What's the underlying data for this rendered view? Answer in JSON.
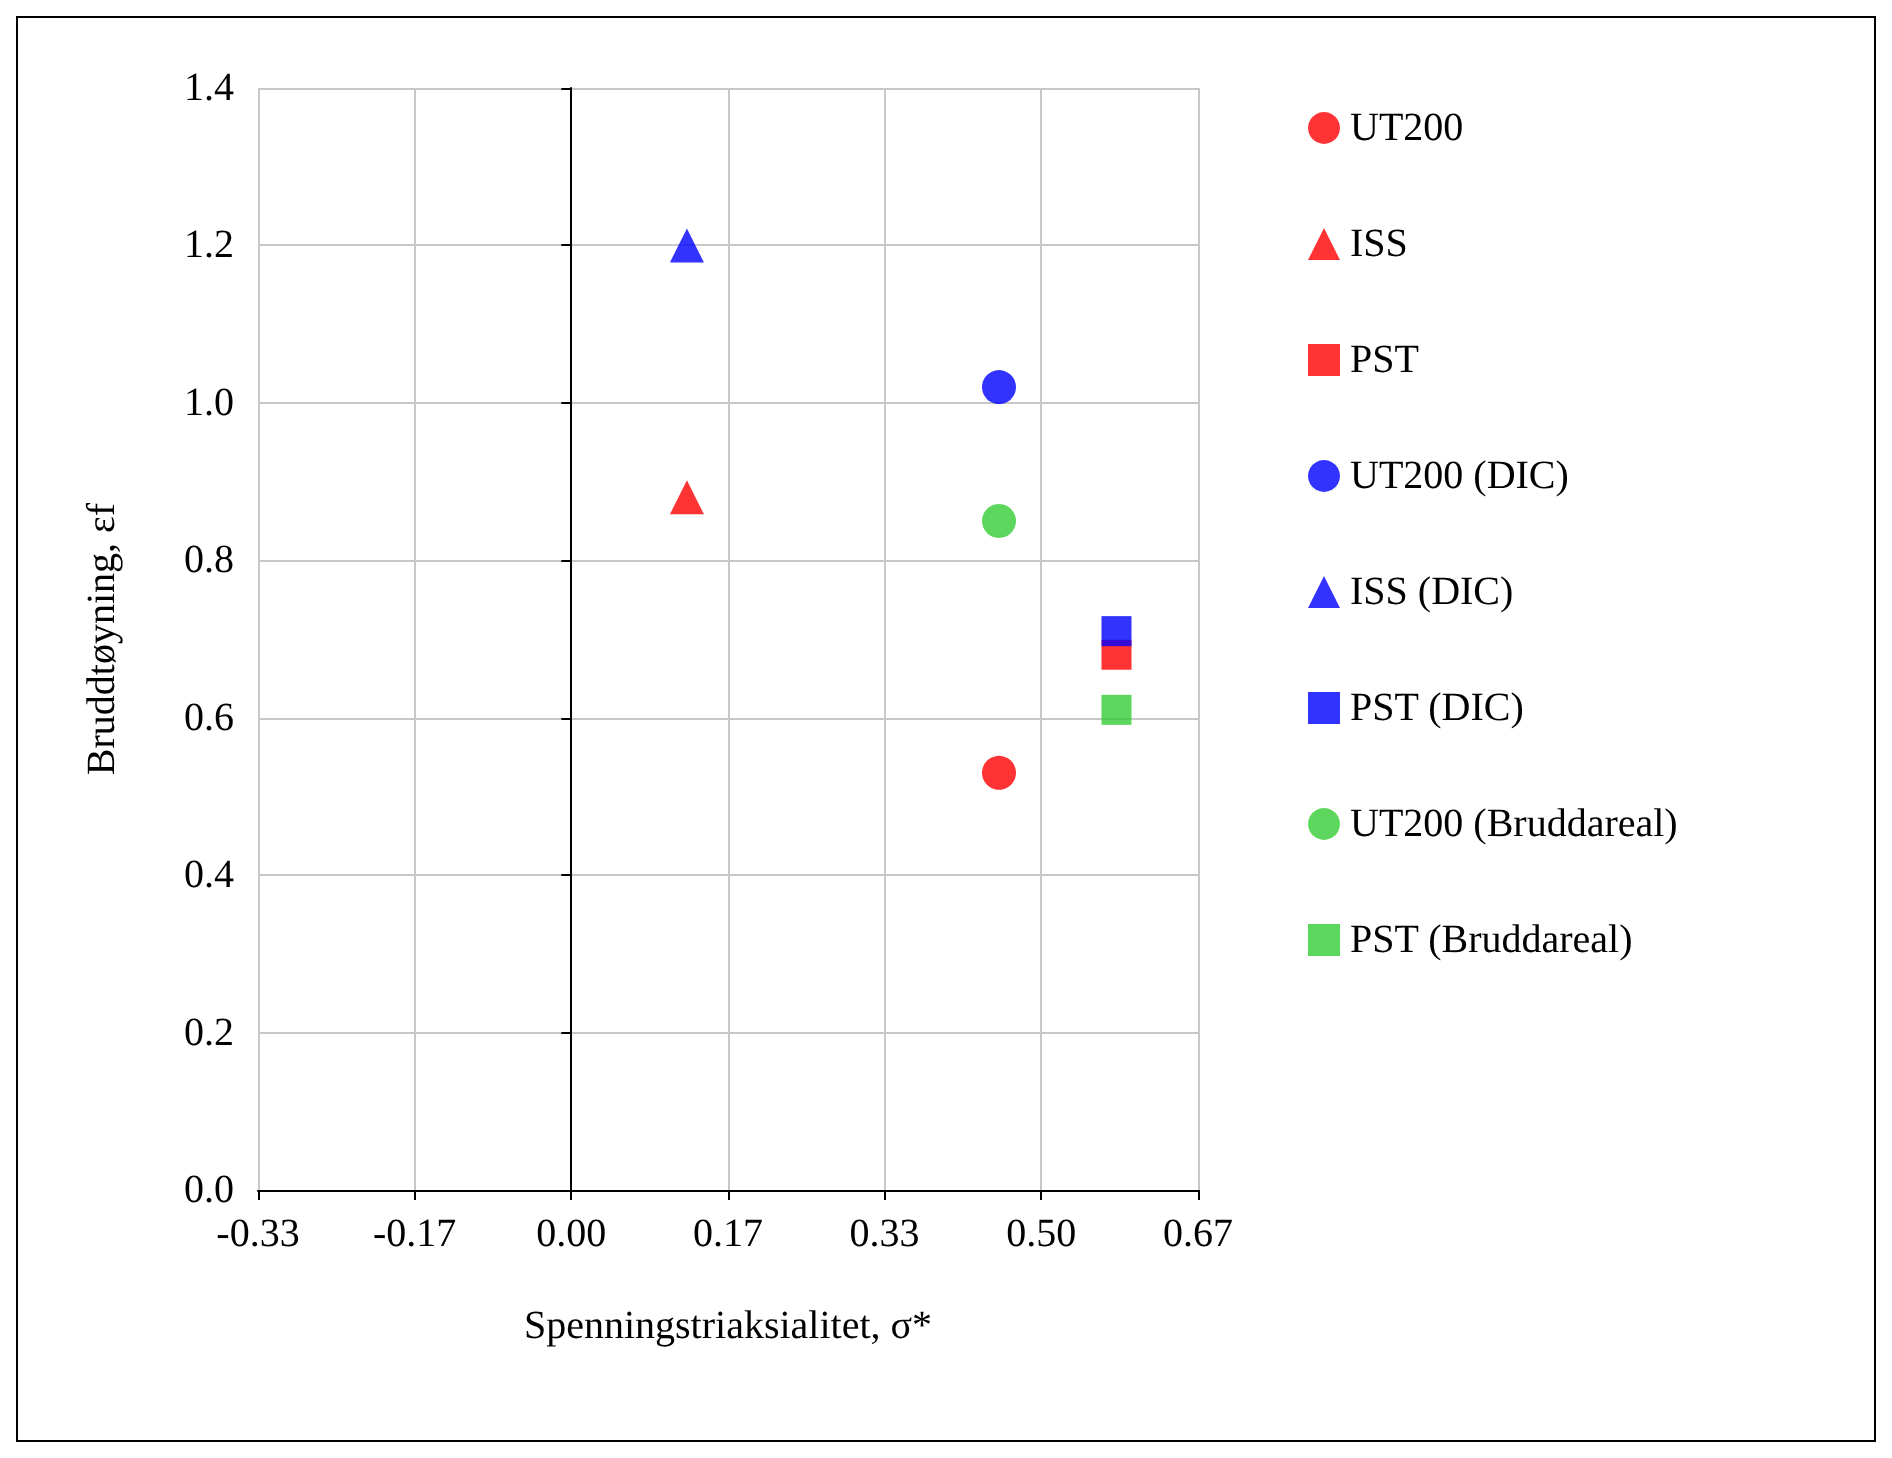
{
  "chart_data": {
    "type": "scatter",
    "xlabel": "Spenningstriaksialitet, σ*",
    "ylabel": "Bruddtøyning, εf",
    "xlim": [
      -0.3333,
      0.6667
    ],
    "xticks": [
      {
        "value": -0.3333,
        "label": "-0.33"
      },
      {
        "value": -0.1667,
        "label": "-0.17"
      },
      {
        "value": 0,
        "label": "0.00"
      },
      {
        "value": 0.1667,
        "label": "0.17"
      },
      {
        "value": 0.3333,
        "label": "0.33"
      },
      {
        "value": 0.5,
        "label": "0.50"
      },
      {
        "value": 0.6667,
        "label": "0.67"
      }
    ],
    "ylim": [
      0,
      1.4
    ],
    "yticks": [
      {
        "value": 0,
        "label": "0.0"
      },
      {
        "value": 0.2,
        "label": "0.2"
      },
      {
        "value": 0.4,
        "label": "0.4"
      },
      {
        "value": 0.6,
        "label": "0.6"
      },
      {
        "value": 0.8,
        "label": "0.8"
      },
      {
        "value": 1,
        "label": "1.0"
      },
      {
        "value": 1.2,
        "label": "1.2"
      },
      {
        "value": 1.4,
        "label": "1.4"
      }
    ],
    "grid": true,
    "legend": "right",
    "series": [
      {
        "name": "UT200",
        "color": "#ff0000",
        "marker": "circle",
        "x": [
          0.455
        ],
        "values": [
          0.53
        ]
      },
      {
        "name": "ISS",
        "color": "#ff0000",
        "marker": "triangle",
        "x": [
          0.123
        ],
        "values": [
          0.88
        ]
      },
      {
        "name": "PST",
        "color": "#ff0000",
        "marker": "square",
        "x": [
          0.58
        ],
        "values": [
          0.68
        ]
      },
      {
        "name": "UT200 (DIC)",
        "color": "#0000ff",
        "marker": "circle",
        "x": [
          0.455
        ],
        "values": [
          1.02
        ]
      },
      {
        "name": "ISS (DIC)",
        "color": "#0000ff",
        "marker": "triangle",
        "x": [
          0.123
        ],
        "values": [
          1.2
        ]
      },
      {
        "name": "PST (DIC)",
        "color": "#0000ff",
        "marker": "square",
        "x": [
          0.58
        ],
        "values": [
          0.71
        ]
      },
      {
        "name": "UT200 (Bruddareal)",
        "color": "#33cc33",
        "marker": "circle",
        "x": [
          0.455
        ],
        "values": [
          0.85
        ]
      },
      {
        "name": "PST (Bruddareal)",
        "color": "#33cc33",
        "marker": "square",
        "x": [
          0.58
        ],
        "values": [
          0.61
        ]
      }
    ]
  }
}
